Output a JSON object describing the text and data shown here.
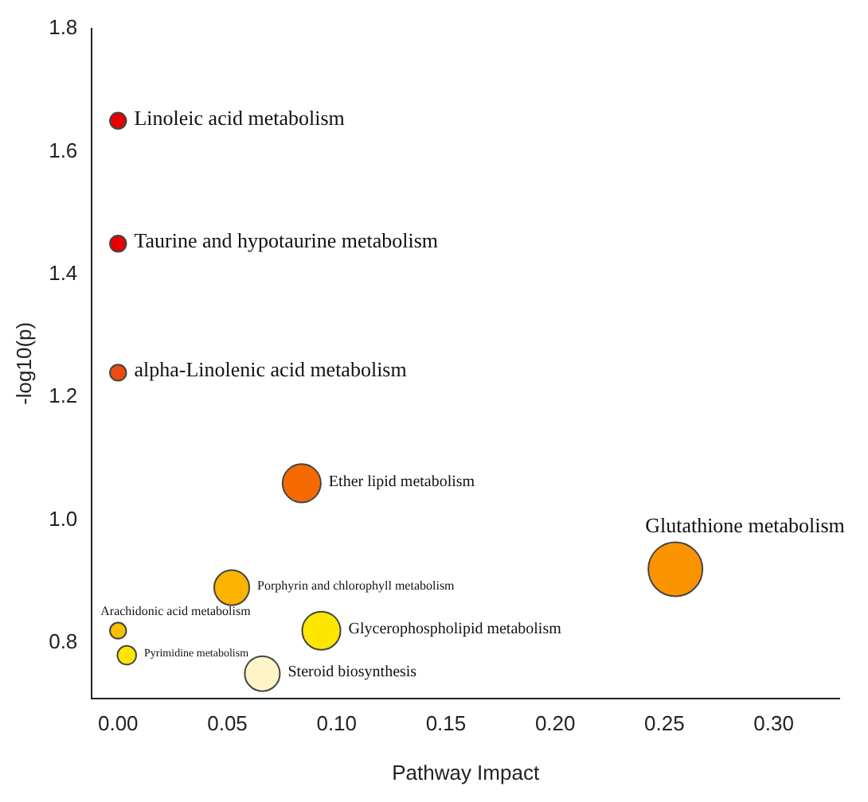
{
  "chart_data": {
    "type": "bubble",
    "xlabel": "Pathway Impact",
    "ylabel": "-log10(p)",
    "xlim": [
      -0.012,
      0.33
    ],
    "xticks": [
      {
        "value": 0,
        "label": "0.00"
      },
      {
        "value": 0.05,
        "label": "0.05"
      },
      {
        "value": 0.1,
        "label": "0.10"
      },
      {
        "value": 0.15,
        "label": "0.15"
      },
      {
        "value": 0.2,
        "label": "0.20"
      },
      {
        "value": 0.25,
        "label": "0.25"
      },
      {
        "value": 0.3,
        "label": "0.30"
      }
    ],
    "ylim": [
      0.71,
      1.8
    ],
    "yticks": [
      {
        "value": 0.8,
        "label": "0.8"
      },
      {
        "value": 1,
        "label": "1.0"
      },
      {
        "value": 1.2,
        "label": "1.2"
      },
      {
        "value": 1.4,
        "label": "1.4"
      },
      {
        "value": 1.6,
        "label": "1.6"
      },
      {
        "value": 1.8,
        "label": "1.8"
      }
    ],
    "grid": false,
    "legend": false,
    "x": [
      0,
      0,
      0,
      0.084,
      0.255,
      0.052,
      0,
      0.093,
      0.004,
      0.066
    ],
    "values": [
      1.65,
      1.45,
      1.24,
      1.06,
      0.92,
      0.89,
      0.82,
      0.82,
      0.78,
      0.75
    ],
    "sizes": [
      0.09,
      0.09,
      0.09,
      0.5,
      1,
      0.42,
      0.09,
      0.5,
      0.12,
      0.42
    ],
    "colors": [
      "#e80000",
      "#e80000",
      "#f04a10",
      "#f56a00",
      "#fb9400",
      "#fbb400",
      "#f8c000",
      "#fde600",
      "#fde600",
      "#fff4c8"
    ],
    "annotations": [
      {
        "text": "Linoleic acid metabolism",
        "x": 0,
        "y": 1.65
      },
      {
        "text": "Taurine and hypotaurine metabolism",
        "x": 0,
        "y": 1.45
      },
      {
        "text": "alpha-Linolenic acid metabolism",
        "x": 0,
        "y": 1.24
      },
      {
        "text": "Ether lipid metabolism",
        "x": 0.084,
        "y": 1.06
      },
      {
        "text": "Glutathione metabolism",
        "x": 0.255,
        "y": 0.92
      },
      {
        "text": "Porphyrin and chlorophyll metabolism",
        "x": 0.052,
        "y": 0.89
      },
      {
        "text": "Arachidonic acid metabolism",
        "x": 0,
        "y": 0.82
      },
      {
        "text": "Glycerophospholipid metabolism",
        "x": 0.093,
        "y": 0.82
      },
      {
        "text": "Pyrimidine metabolism",
        "x": 0.004,
        "y": 0.78
      },
      {
        "text": "Steroid biosynthesis",
        "x": 0.066,
        "y": 0.75
      }
    ]
  }
}
